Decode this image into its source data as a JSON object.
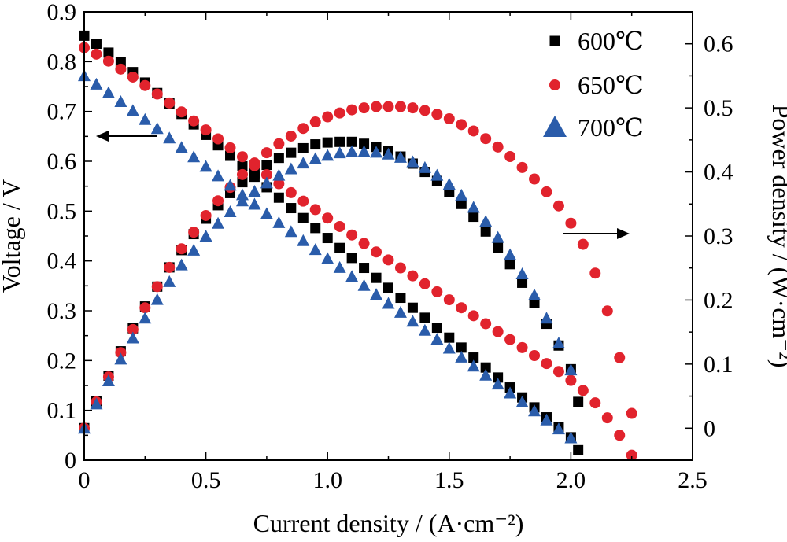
{
  "chart_data": {
    "type": "scatter",
    "xlabel": "Current density / (A·cm⁻²)",
    "ylabel_left": "Voltage / V",
    "ylabel_right": "Power density / (W·cm⁻²)",
    "xlim": [
      0,
      2.5
    ],
    "ylim_left": [
      0,
      0.9
    ],
    "ylim_right": [
      -0.05,
      0.65
    ],
    "x_ticks": [
      "0",
      "0.5",
      "1.0",
      "1.5",
      "2.0",
      "2.5"
    ],
    "x_tick_values": [
      0,
      0.5,
      1.0,
      1.5,
      2.0,
      2.5
    ],
    "y_left_ticks": [
      "0",
      "0.1",
      "0.2",
      "0.3",
      "0.4",
      "0.5",
      "0.6",
      "0.7",
      "0.8",
      "0.9"
    ],
    "y_left_tick_values": [
      0,
      0.1,
      0.2,
      0.3,
      0.4,
      0.5,
      0.6,
      0.7,
      0.8,
      0.9
    ],
    "y_right_ticks": [
      "0",
      "0.1",
      "0.2",
      "0.3",
      "0.4",
      "0.5",
      "0.6"
    ],
    "y_right_tick_values": [
      0,
      0.1,
      0.2,
      0.3,
      0.4,
      0.5,
      0.6
    ],
    "grid": false,
    "legend_position": "top-right",
    "series": [
      {
        "name": "600℃",
        "marker": "square",
        "color": "#000000",
        "voltage": {
          "x": [
            0,
            0.05,
            0.1,
            0.15,
            0.2,
            0.25,
            0.3,
            0.35,
            0.4,
            0.45,
            0.5,
            0.55,
            0.6,
            0.65,
            0.7,
            0.75,
            0.8,
            0.85,
            0.9,
            0.95,
            1.0,
            1.05,
            1.1,
            1.15,
            1.2,
            1.25,
            1.3,
            1.35,
            1.4,
            1.45,
            1.5,
            1.55,
            1.6,
            1.65,
            1.7,
            1.75,
            1.8,
            1.85,
            1.9,
            1.95,
            2.0,
            2.03
          ],
          "y": [
            0.852,
            0.836,
            0.818,
            0.799,
            0.779,
            0.758,
            0.737,
            0.716,
            0.695,
            0.674,
            0.653,
            0.632,
            0.611,
            0.59,
            0.569,
            0.548,
            0.527,
            0.506,
            0.486,
            0.466,
            0.446,
            0.426,
            0.406,
            0.386,
            0.366,
            0.346,
            0.326,
            0.306,
            0.286,
            0.266,
            0.246,
            0.226,
            0.206,
            0.186,
            0.166,
            0.146,
            0.126,
            0.106,
            0.086,
            0.066,
            0.046,
            0.02
          ]
        },
        "power": {
          "x": [
            0,
            0.05,
            0.1,
            0.15,
            0.2,
            0.25,
            0.3,
            0.35,
            0.4,
            0.45,
            0.5,
            0.55,
            0.6,
            0.65,
            0.7,
            0.75,
            0.8,
            0.85,
            0.9,
            0.95,
            1.0,
            1.05,
            1.1,
            1.15,
            1.2,
            1.25,
            1.3,
            1.35,
            1.4,
            1.45,
            1.5,
            1.55,
            1.6,
            1.65,
            1.7,
            1.75,
            1.8,
            1.85,
            1.9,
            1.95,
            2.0,
            2.03
          ],
          "y": [
            0.0,
            0.042,
            0.082,
            0.12,
            0.156,
            0.19,
            0.221,
            0.251,
            0.278,
            0.303,
            0.327,
            0.348,
            0.367,
            0.384,
            0.398,
            0.411,
            0.422,
            0.43,
            0.437,
            0.443,
            0.446,
            0.447,
            0.447,
            0.444,
            0.439,
            0.433,
            0.424,
            0.413,
            0.4,
            0.386,
            0.369,
            0.35,
            0.33,
            0.307,
            0.282,
            0.256,
            0.227,
            0.196,
            0.163,
            0.129,
            0.092,
            0.041
          ]
        }
      },
      {
        "name": "650℃",
        "marker": "circle",
        "color": "#e1232d",
        "voltage": {
          "x": [
            0,
            0.05,
            0.1,
            0.15,
            0.2,
            0.25,
            0.3,
            0.35,
            0.4,
            0.45,
            0.5,
            0.55,
            0.6,
            0.65,
            0.7,
            0.75,
            0.8,
            0.85,
            0.9,
            0.95,
            1.0,
            1.05,
            1.1,
            1.15,
            1.2,
            1.25,
            1.3,
            1.35,
            1.4,
            1.45,
            1.5,
            1.55,
            1.6,
            1.65,
            1.7,
            1.75,
            1.8,
            1.85,
            1.9,
            1.95,
            2.0,
            2.05,
            2.1,
            2.15,
            2.2,
            2.25
          ],
          "y": [
            0.828,
            0.815,
            0.801,
            0.785,
            0.769,
            0.752,
            0.735,
            0.717,
            0.699,
            0.681,
            0.663,
            0.645,
            0.627,
            0.609,
            0.591,
            0.573,
            0.555,
            0.537,
            0.52,
            0.503,
            0.486,
            0.469,
            0.452,
            0.435,
            0.418,
            0.402,
            0.386,
            0.37,
            0.354,
            0.338,
            0.322,
            0.306,
            0.29,
            0.274,
            0.258,
            0.242,
            0.226,
            0.21,
            0.194,
            0.178,
            0.16,
            0.14,
            0.115,
            0.085,
            0.05,
            0.01
          ]
        },
        "power": {
          "x": [
            0,
            0.05,
            0.1,
            0.15,
            0.2,
            0.25,
            0.3,
            0.35,
            0.4,
            0.45,
            0.5,
            0.55,
            0.6,
            0.65,
            0.7,
            0.75,
            0.8,
            0.85,
            0.9,
            0.95,
            1.0,
            1.05,
            1.1,
            1.15,
            1.2,
            1.25,
            1.3,
            1.35,
            1.4,
            1.45,
            1.5,
            1.55,
            1.6,
            1.65,
            1.7,
            1.75,
            1.8,
            1.85,
            1.9,
            1.95,
            2.0,
            2.05,
            2.1,
            2.15,
            2.2,
            2.25
          ],
          "y": [
            0.0,
            0.041,
            0.08,
            0.118,
            0.154,
            0.188,
            0.221,
            0.251,
            0.28,
            0.306,
            0.332,
            0.355,
            0.376,
            0.396,
            0.414,
            0.43,
            0.444,
            0.456,
            0.468,
            0.478,
            0.486,
            0.492,
            0.497,
            0.5,
            0.502,
            0.502,
            0.502,
            0.5,
            0.496,
            0.49,
            0.483,
            0.474,
            0.464,
            0.452,
            0.439,
            0.424,
            0.407,
            0.389,
            0.369,
            0.347,
            0.32,
            0.287,
            0.242,
            0.183,
            0.11,
            0.023
          ]
        }
      },
      {
        "name": "700℃",
        "marker": "triangle",
        "color": "#2a5caa",
        "voltage": {
          "x": [
            0,
            0.05,
            0.1,
            0.15,
            0.2,
            0.25,
            0.3,
            0.35,
            0.4,
            0.45,
            0.5,
            0.55,
            0.6,
            0.65,
            0.7,
            0.75,
            0.8,
            0.85,
            0.9,
            0.95,
            1.0,
            1.05,
            1.1,
            1.15,
            1.2,
            1.25,
            1.3,
            1.35,
            1.4,
            1.45,
            1.5,
            1.55,
            1.6,
            1.65,
            1.7,
            1.75,
            1.8,
            1.85,
            1.9,
            1.95,
            2.0
          ],
          "y": [
            0.772,
            0.755,
            0.738,
            0.72,
            0.702,
            0.684,
            0.666,
            0.647,
            0.628,
            0.609,
            0.59,
            0.571,
            0.552,
            0.533,
            0.514,
            0.495,
            0.477,
            0.459,
            0.441,
            0.423,
            0.405,
            0.387,
            0.369,
            0.351,
            0.333,
            0.315,
            0.297,
            0.279,
            0.261,
            0.243,
            0.225,
            0.207,
            0.189,
            0.171,
            0.153,
            0.135,
            0.117,
            0.099,
            0.081,
            0.063,
            0.045
          ]
        },
        "power": {
          "x": [
            0,
            0.05,
            0.1,
            0.15,
            0.2,
            0.25,
            0.3,
            0.35,
            0.4,
            0.45,
            0.5,
            0.55,
            0.6,
            0.65,
            0.7,
            0.75,
            0.8,
            0.85,
            0.9,
            0.95,
            1.0,
            1.05,
            1.1,
            1.15,
            1.2,
            1.25,
            1.3,
            1.35,
            1.4,
            1.45,
            1.5,
            1.55,
            1.6,
            1.65,
            1.7,
            1.75,
            1.8,
            1.85,
            1.9,
            1.95,
            2.0
          ],
          "y": [
            0.0,
            0.038,
            0.074,
            0.108,
            0.141,
            0.172,
            0.201,
            0.229,
            0.255,
            0.278,
            0.3,
            0.32,
            0.338,
            0.355,
            0.37,
            0.383,
            0.395,
            0.405,
            0.414,
            0.421,
            0.426,
            0.43,
            0.432,
            0.432,
            0.431,
            0.428,
            0.423,
            0.416,
            0.407,
            0.395,
            0.381,
            0.364,
            0.345,
            0.323,
            0.298,
            0.271,
            0.241,
            0.208,
            0.172,
            0.133,
            0.091
          ]
        }
      }
    ]
  }
}
